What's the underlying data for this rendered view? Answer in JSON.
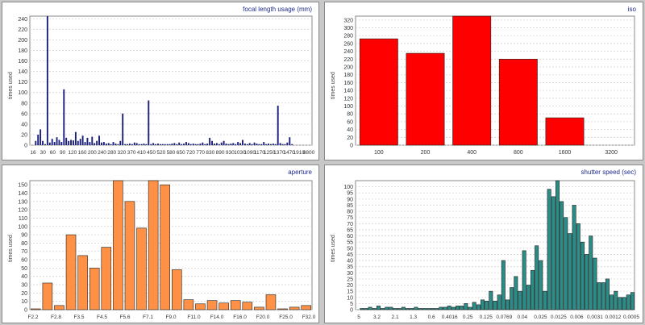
{
  "chart_data": [
    {
      "id": "focal",
      "type": "bar",
      "title": "focal length usage (mm)",
      "ylabel": "times used",
      "ylim": [
        0,
        245
      ],
      "yticks": [
        0,
        20,
        40,
        60,
        80,
        100,
        120,
        140,
        160,
        180,
        200,
        220,
        240
      ],
      "xticks": [
        "16",
        "30",
        "60",
        "90",
        "120",
        "160",
        "200",
        "240",
        "280",
        "320",
        "370",
        "410",
        "450",
        "520",
        "580",
        "650",
        "720",
        "770",
        "830",
        "890",
        "930",
        "1030",
        "1090",
        "1170",
        "1250",
        "1370",
        "1470",
        "1910",
        "8800"
      ],
      "values": [
        0,
        0,
        8,
        20,
        30,
        8,
        2,
        245,
        5,
        12,
        6,
        15,
        10,
        6,
        106,
        14,
        8,
        10,
        9,
        25,
        8,
        12,
        18,
        6,
        14,
        6,
        16,
        4,
        8,
        18,
        5,
        6,
        3,
        4,
        2,
        6,
        3,
        2,
        8,
        60,
        2,
        2,
        3,
        2,
        5,
        4,
        2,
        2,
        3,
        2,
        85,
        2,
        4,
        2,
        3,
        2,
        2,
        2,
        2,
        2,
        3,
        4,
        2,
        5,
        2,
        3,
        6,
        4,
        2,
        3,
        2,
        2,
        3,
        5,
        2,
        3,
        14,
        8,
        3,
        4,
        2,
        5,
        8,
        3,
        2,
        3,
        4,
        2,
        6,
        4,
        10,
        3,
        2,
        4,
        2,
        5,
        3,
        2,
        2,
        6,
        2,
        3,
        2,
        3,
        2,
        75,
        4,
        2,
        2,
        5,
        15,
        2,
        0,
        0,
        0,
        0,
        0,
        0,
        0,
        0
      ],
      "color": "#1a1f7a"
    },
    {
      "id": "iso",
      "type": "bar",
      "title": "iso",
      "ylabel": "times used",
      "ylim": [
        0,
        330
      ],
      "yticks": [
        0,
        20,
        40,
        60,
        80,
        100,
        120,
        140,
        160,
        180,
        200,
        220,
        240,
        260,
        280,
        300,
        320
      ],
      "categories": [
        "100",
        "200",
        "400",
        "800",
        "1600",
        "3200"
      ],
      "values": [
        272,
        235,
        330,
        220,
        70,
        0
      ],
      "color": "#ff0000"
    },
    {
      "id": "aperture",
      "type": "bar",
      "title": "aperture",
      "ylabel": "times used",
      "ylim": [
        0,
        155
      ],
      "yticks": [
        0,
        10,
        20,
        30,
        40,
        50,
        60,
        70,
        80,
        90,
        100,
        110,
        120,
        130,
        140,
        150
      ],
      "xticks": [
        "F2.2",
        "F2.8",
        "F3.5",
        "F4.5",
        "F5.6",
        "F7.1",
        "F9.0",
        "F11.0",
        "F14.0",
        "F16.0",
        "F20.0",
        "F25.0",
        "F32.0"
      ],
      "values": [
        1,
        32,
        5,
        90,
        65,
        50,
        75,
        155,
        130,
        98,
        155,
        150,
        48,
        12,
        7,
        11,
        8,
        11,
        9,
        3,
        18,
        1,
        3,
        5
      ],
      "color": "#ff9147"
    },
    {
      "id": "shutter",
      "type": "bar",
      "title": "shutter speed (sec)",
      "ylabel": "times used",
      "ylim": [
        0,
        105
      ],
      "yticks": [
        0,
        5,
        10,
        15,
        20,
        25,
        30,
        35,
        40,
        45,
        50,
        55,
        60,
        65,
        70,
        75,
        80,
        85,
        90,
        95,
        100
      ],
      "xticks": [
        "5",
        "3.2",
        "2.1",
        "1.3",
        "0.6",
        "0.4016",
        "0.25",
        "0.125",
        "0.0769",
        "0.04",
        "0.025",
        "0.0125",
        "0.006",
        "0.0031",
        "0.0012",
        "0.0005"
      ],
      "values": [
        0,
        1,
        1,
        2,
        1,
        3,
        1,
        2,
        2,
        1,
        1,
        2,
        1,
        1,
        2,
        1,
        1,
        1,
        1,
        1,
        2,
        2,
        3,
        2,
        3,
        3,
        5,
        2,
        6,
        4,
        8,
        7,
        15,
        7,
        12,
        40,
        8,
        18,
        27,
        15,
        48,
        20,
        32,
        52,
        40,
        15,
        98,
        92,
        105,
        88,
        75,
        62,
        85,
        70,
        55,
        45,
        60,
        42,
        22,
        22,
        25,
        12,
        15,
        10,
        10,
        12,
        14
      ],
      "color": "#2a8d88"
    }
  ]
}
